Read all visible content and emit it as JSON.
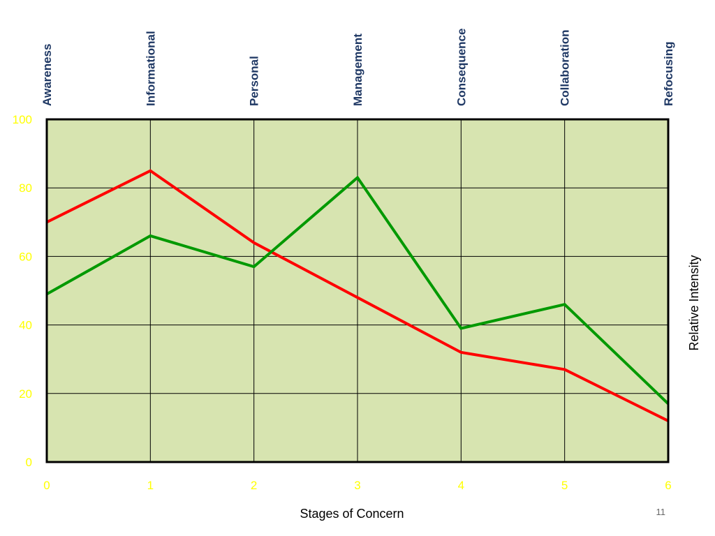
{
  "chart_data": {
    "type": "line",
    "title": "",
    "xlabel": "Stages of Concern",
    "ylabel": "Relative Intensity",
    "x": [
      0,
      1,
      2,
      3,
      4,
      5,
      6
    ],
    "xlim": [
      0,
      6
    ],
    "ylim": [
      0,
      100
    ],
    "y_ticks": [
      0,
      20,
      40,
      60,
      80,
      100
    ],
    "x_ticks": [
      0,
      1,
      2,
      3,
      4,
      5,
      6
    ],
    "stage_labels": [
      "Awareness",
      "Informational",
      "Personal",
      "Management",
      "Consequence",
      "Collaboration",
      "Refocusing"
    ],
    "grid": true,
    "legend": "none",
    "series": [
      {
        "color": "#ff0000",
        "values": [
          70,
          85,
          64,
          48,
          32,
          27,
          12
        ]
      },
      {
        "color": "#009900",
        "values": [
          49,
          66,
          57,
          83,
          39,
          46,
          17
        ]
      }
    ],
    "colors": {
      "plot_background": "#d7e4b0",
      "tick_labels": "#ffff00",
      "stage_labels": "#1f3864",
      "axis_title": "#000000",
      "grid": "#000000"
    }
  },
  "page": {
    "number": "11"
  }
}
